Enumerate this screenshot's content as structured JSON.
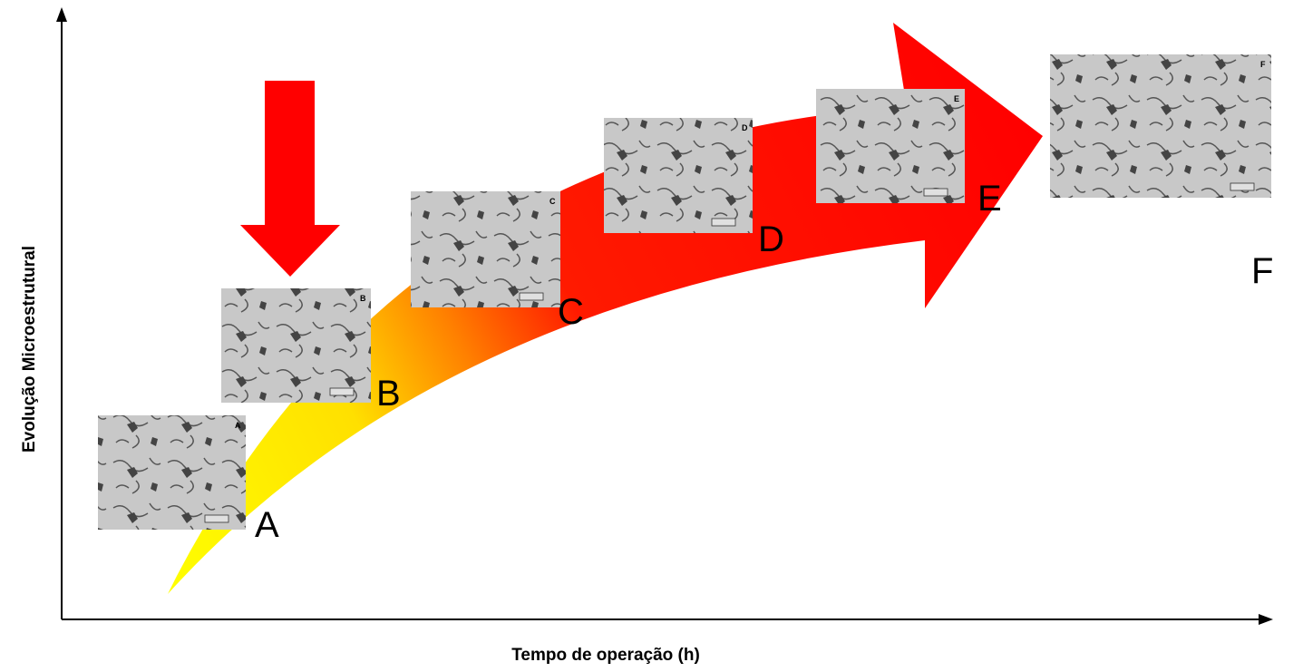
{
  "axes": {
    "y_label": "Evolução Microestrutural",
    "x_label": "Tempo de operação (h)"
  },
  "stages": [
    {
      "label": "A",
      "image_label": "A"
    },
    {
      "label": "B",
      "image_label": "B"
    },
    {
      "label": "C",
      "image_label": "C"
    },
    {
      "label": "D",
      "image_label": "D"
    },
    {
      "label": "E",
      "image_label": "E"
    },
    {
      "label": "F",
      "image_label": "F"
    }
  ]
}
